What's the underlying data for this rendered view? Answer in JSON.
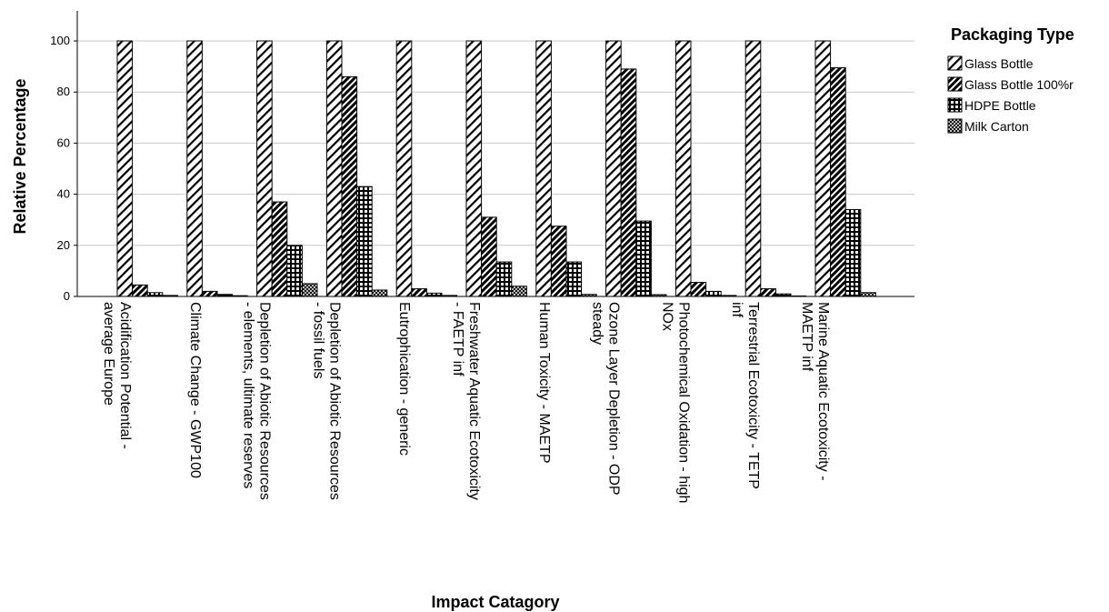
{
  "chart_data": {
    "type": "bar",
    "ylabel": "Relative Percentage",
    "xlabel": "Impact Catagory",
    "ylim": [
      0,
      110
    ],
    "yticks": [
      0,
      20,
      40,
      60,
      80,
      100
    ],
    "grid": true,
    "legend_title": "Packaging Type",
    "legend_position": "top-right",
    "categories": [
      [
        "Acidification Potential -",
        "average Europe"
      ],
      [
        "Climate Change - GWP100"
      ],
      [
        "Depletion of Abiotic Resources",
        "- elements, ultimate reserves"
      ],
      [
        "Depletion of Abiotic Resources",
        "- fossil fuels"
      ],
      [
        "Eutrophication - generic"
      ],
      [
        "Freshwater Aquatic Ecotoxicity",
        "- FAETP inf"
      ],
      [
        "Human Toxicity - MAETP"
      ],
      [
        "Ozone Layer Depletion - ODP",
        "steady"
      ],
      [
        "Photochemical Oxidation - high",
        "NOx"
      ],
      [
        "Terrestrial Ecotoxicity - TETP",
        "inf"
      ],
      [
        "Marine Aquatic Ecotoxicity -",
        "MAETP inf"
      ]
    ],
    "series": [
      {
        "name": "Glass Bottle",
        "pattern": "diag-light",
        "values": [
          100,
          100,
          100,
          100,
          100,
          100,
          100,
          100,
          100,
          100,
          100
        ]
      },
      {
        "name": "Glass Bottle 100%r",
        "pattern": "diag-dense",
        "values": [
          4.5,
          2,
          37,
          86,
          3,
          31,
          27.5,
          89,
          5.5,
          3,
          89.5
        ]
      },
      {
        "name": "HDPE Bottle",
        "pattern": "grid",
        "values": [
          1.5,
          0.8,
          20,
          43,
          1.3,
          13.5,
          13.5,
          29.5,
          2,
          1,
          34
        ]
      },
      {
        "name": "Milk Carton",
        "pattern": "crosshatch",
        "values": [
          0.4,
          0.3,
          5,
          2.5,
          0.4,
          4,
          0.8,
          0.7,
          0.4,
          0.2,
          1.5
        ]
      }
    ]
  }
}
